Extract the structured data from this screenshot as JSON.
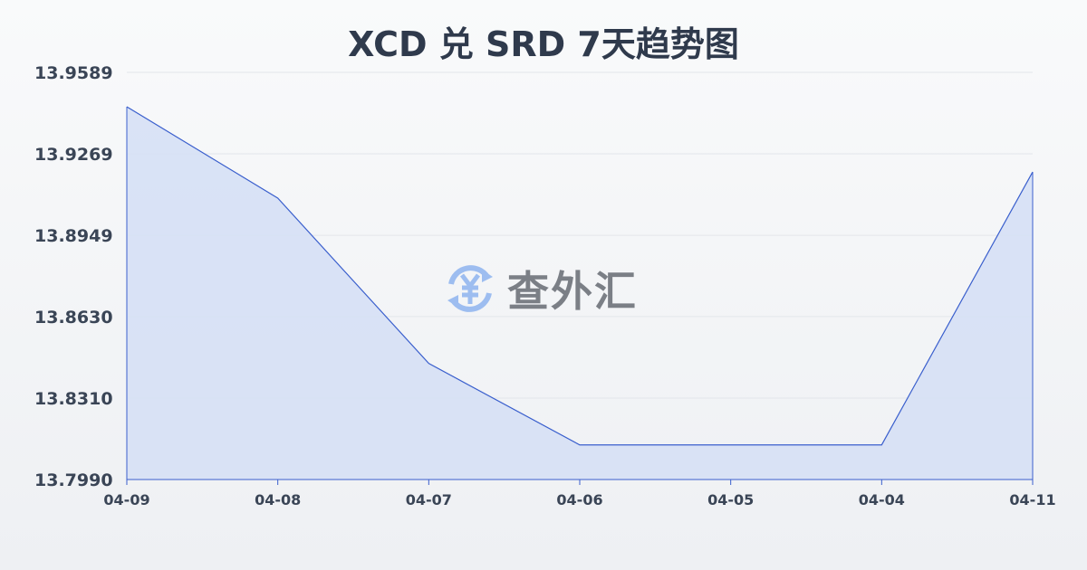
{
  "chart_data": {
    "type": "area",
    "title": "XCD 兑 SRD 7天趋势图",
    "categories": [
      "04-09",
      "04-08",
      "04-07",
      "04-06",
      "04-05",
      "04-04",
      "04-11"
    ],
    "values": [
      13.9454,
      13.9095,
      13.8446,
      13.8126,
      13.8126,
      13.8126,
      13.9198
    ],
    "yticks": [
      "13.9589",
      "13.9269",
      "13.8949",
      "13.8630",
      "13.8310",
      "13.7990"
    ],
    "ylim": [
      13.799,
      13.9589
    ],
    "grid": true,
    "colors": {
      "line": "#3a5fcd",
      "fill": "#d6e0f5"
    }
  },
  "watermark": {
    "text": "查外汇",
    "icon": "yen-exchange-icon"
  }
}
